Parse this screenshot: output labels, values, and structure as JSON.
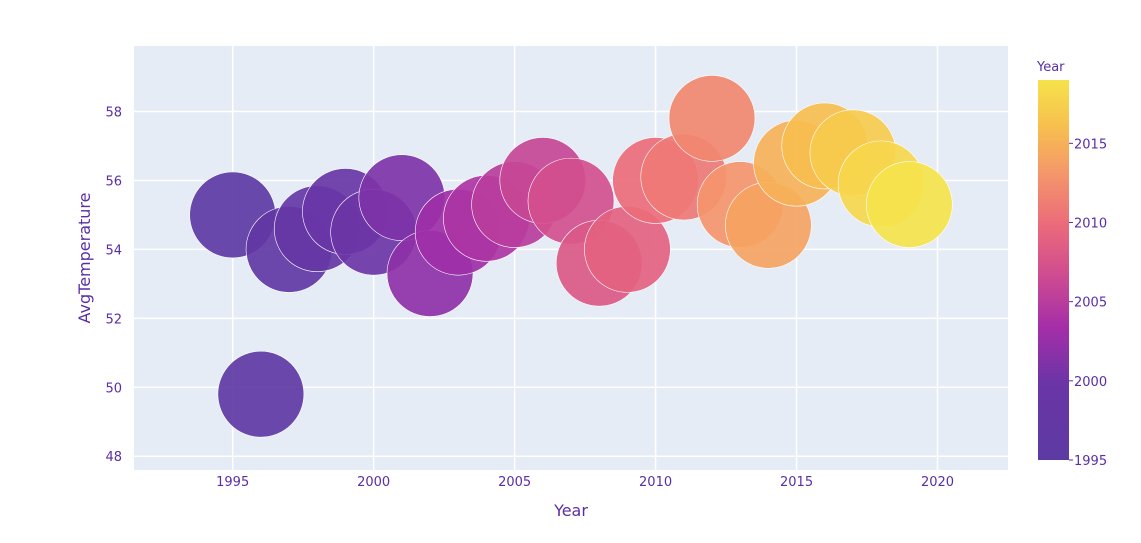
{
  "chart_data": {
    "type": "scatter",
    "xlabel": "Year",
    "ylabel": "AvgTemperature",
    "xlim": [
      1991.5,
      2022.5
    ],
    "ylim": [
      47.6,
      59.9
    ],
    "x_ticks": [
      1995,
      2000,
      2005,
      2010,
      2015,
      2020
    ],
    "y_ticks": [
      48,
      50,
      52,
      54,
      56,
      58
    ],
    "grid": true,
    "marker": "large-bubble",
    "colorbar": {
      "title": "Year",
      "range": [
        1995,
        2019
      ],
      "ticks": [
        1995,
        2000,
        2005,
        2010,
        2015
      ],
      "colorscale": [
        "#0d0887",
        "#46039f",
        "#7201a8",
        "#9c179e",
        "#bd3786",
        "#d8576b",
        "#ed7953",
        "#fb9f3a",
        "#fdca26",
        "#f0f921"
      ]
    },
    "points": [
      {
        "x": 1995,
        "y": 55.0,
        "color": 1995
      },
      {
        "x": 1996,
        "y": 49.8,
        "color": 1996
      },
      {
        "x": 1997,
        "y": 54.0,
        "color": 1997
      },
      {
        "x": 1998,
        "y": 54.6,
        "color": 1998
      },
      {
        "x": 1999,
        "y": 55.1,
        "color": 1999
      },
      {
        "x": 2000,
        "y": 54.5,
        "color": 2000
      },
      {
        "x": 2001,
        "y": 55.5,
        "color": 2001
      },
      {
        "x": 2002,
        "y": 53.3,
        "color": 2002
      },
      {
        "x": 2003,
        "y": 54.5,
        "color": 2003
      },
      {
        "x": 2004,
        "y": 54.9,
        "color": 2004
      },
      {
        "x": 2005,
        "y": 55.3,
        "color": 2005
      },
      {
        "x": 2006,
        "y": 56.0,
        "color": 2006
      },
      {
        "x": 2007,
        "y": 55.4,
        "color": 2007
      },
      {
        "x": 2008,
        "y": 53.6,
        "color": 2008
      },
      {
        "x": 2009,
        "y": 54.0,
        "color": 2009
      },
      {
        "x": 2010,
        "y": 56.0,
        "color": 2010
      },
      {
        "x": 2011,
        "y": 56.1,
        "color": 2011
      },
      {
        "x": 2012,
        "y": 57.8,
        "color": 2012
      },
      {
        "x": 2013,
        "y": 55.3,
        "color": 2013
      },
      {
        "x": 2014,
        "y": 54.7,
        "color": 2014
      },
      {
        "x": 2015,
        "y": 56.5,
        "color": 2015
      },
      {
        "x": 2016,
        "y": 57.0,
        "color": 2016
      },
      {
        "x": 2017,
        "y": 56.8,
        "color": 2017
      },
      {
        "x": 2018,
        "y": 55.9,
        "color": 2018
      },
      {
        "x": 2019,
        "y": 55.3,
        "color": 2019
      }
    ]
  }
}
